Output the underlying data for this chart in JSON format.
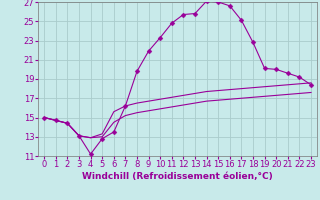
{
  "xlabel": "Windchill (Refroidissement éolien,°C)",
  "bg_color": "#c8eaea",
  "grid_color": "#aacccc",
  "line_color": "#990099",
  "xlim": [
    -0.5,
    23.5
  ],
  "ylim": [
    11,
    27
  ],
  "yticks": [
    11,
    13,
    15,
    17,
    19,
    21,
    23,
    25,
    27
  ],
  "xticks": [
    0,
    1,
    2,
    3,
    4,
    5,
    6,
    7,
    8,
    9,
    10,
    11,
    12,
    13,
    14,
    15,
    16,
    17,
    18,
    19,
    20,
    21,
    22,
    23
  ],
  "curve1_x": [
    0,
    1,
    2,
    3,
    4,
    5,
    6,
    7,
    8,
    9,
    10,
    11,
    12,
    13,
    14,
    15,
    16,
    17,
    18,
    19,
    20,
    21,
    22,
    23
  ],
  "curve1_y": [
    15.0,
    14.7,
    14.4,
    13.1,
    11.2,
    12.8,
    13.5,
    16.2,
    19.8,
    21.9,
    23.3,
    24.8,
    25.7,
    25.8,
    27.1,
    27.0,
    26.6,
    25.1,
    22.8,
    20.1,
    20.0,
    19.6,
    19.2,
    18.4
  ],
  "curve2_x": [
    0,
    1,
    2,
    3,
    4,
    5,
    6,
    7,
    8,
    9,
    10,
    11,
    12,
    13,
    14,
    15,
    16,
    17,
    18,
    19,
    20,
    21,
    22,
    23
  ],
  "curve2_y": [
    15.0,
    14.7,
    14.4,
    13.1,
    12.9,
    13.3,
    15.6,
    16.2,
    16.5,
    16.7,
    16.9,
    17.1,
    17.3,
    17.5,
    17.7,
    17.8,
    17.9,
    18.0,
    18.1,
    18.2,
    18.3,
    18.4,
    18.5,
    18.6
  ],
  "curve3_x": [
    0,
    1,
    2,
    3,
    4,
    5,
    6,
    7,
    8,
    9,
    10,
    11,
    12,
    13,
    14,
    15,
    16,
    17,
    18,
    19,
    20,
    21,
    22,
    23
  ],
  "curve3_y": [
    15.0,
    14.7,
    14.4,
    13.1,
    12.9,
    13.0,
    14.5,
    15.2,
    15.5,
    15.7,
    15.9,
    16.1,
    16.3,
    16.5,
    16.7,
    16.8,
    16.9,
    17.0,
    17.1,
    17.2,
    17.3,
    17.4,
    17.5,
    17.6
  ],
  "xlabel_fontsize": 6.5,
  "tick_fontsize": 6.0,
  "marker_size": 2.5
}
